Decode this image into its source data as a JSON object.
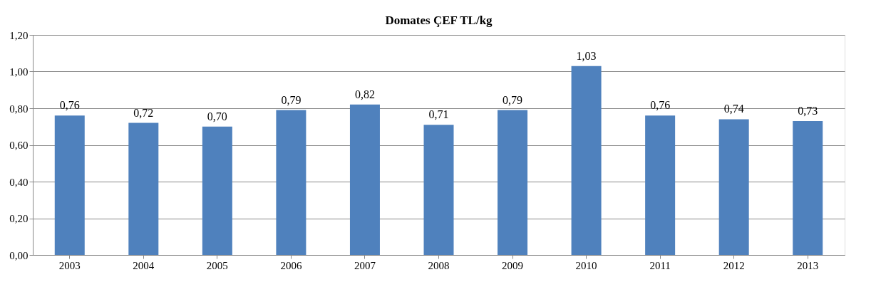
{
  "chart_data": {
    "type": "bar",
    "title": "Domates ÇEF TL/kg",
    "categories": [
      "2003",
      "2004",
      "2005",
      "2006",
      "2007",
      "2008",
      "2009",
      "2010",
      "2011",
      "2012",
      "2013"
    ],
    "values": [
      0.76,
      0.72,
      0.7,
      0.79,
      0.82,
      0.71,
      0.79,
      1.03,
      0.76,
      0.74,
      0.73
    ],
    "value_labels": [
      "0,76",
      "0,72",
      "0,70",
      "0,79",
      "0,82",
      "0,71",
      "0,79",
      "1,03",
      "0,76",
      "0,74",
      "0,73"
    ],
    "color": "#4f81bd",
    "ylim": [
      0,
      1.2
    ],
    "yticks": [
      {
        "value": 0,
        "label": "0,00"
      },
      {
        "value": 0.2,
        "label": "0,20"
      },
      {
        "value": 0.4,
        "label": "0,40"
      },
      {
        "value": 0.6,
        "label": "0,60"
      },
      {
        "value": 0.8,
        "label": "0,80"
      },
      {
        "value": 1.0,
        "label": "1,00"
      },
      {
        "value": 1.2,
        "label": "1,20"
      }
    ],
    "grid": "y"
  }
}
